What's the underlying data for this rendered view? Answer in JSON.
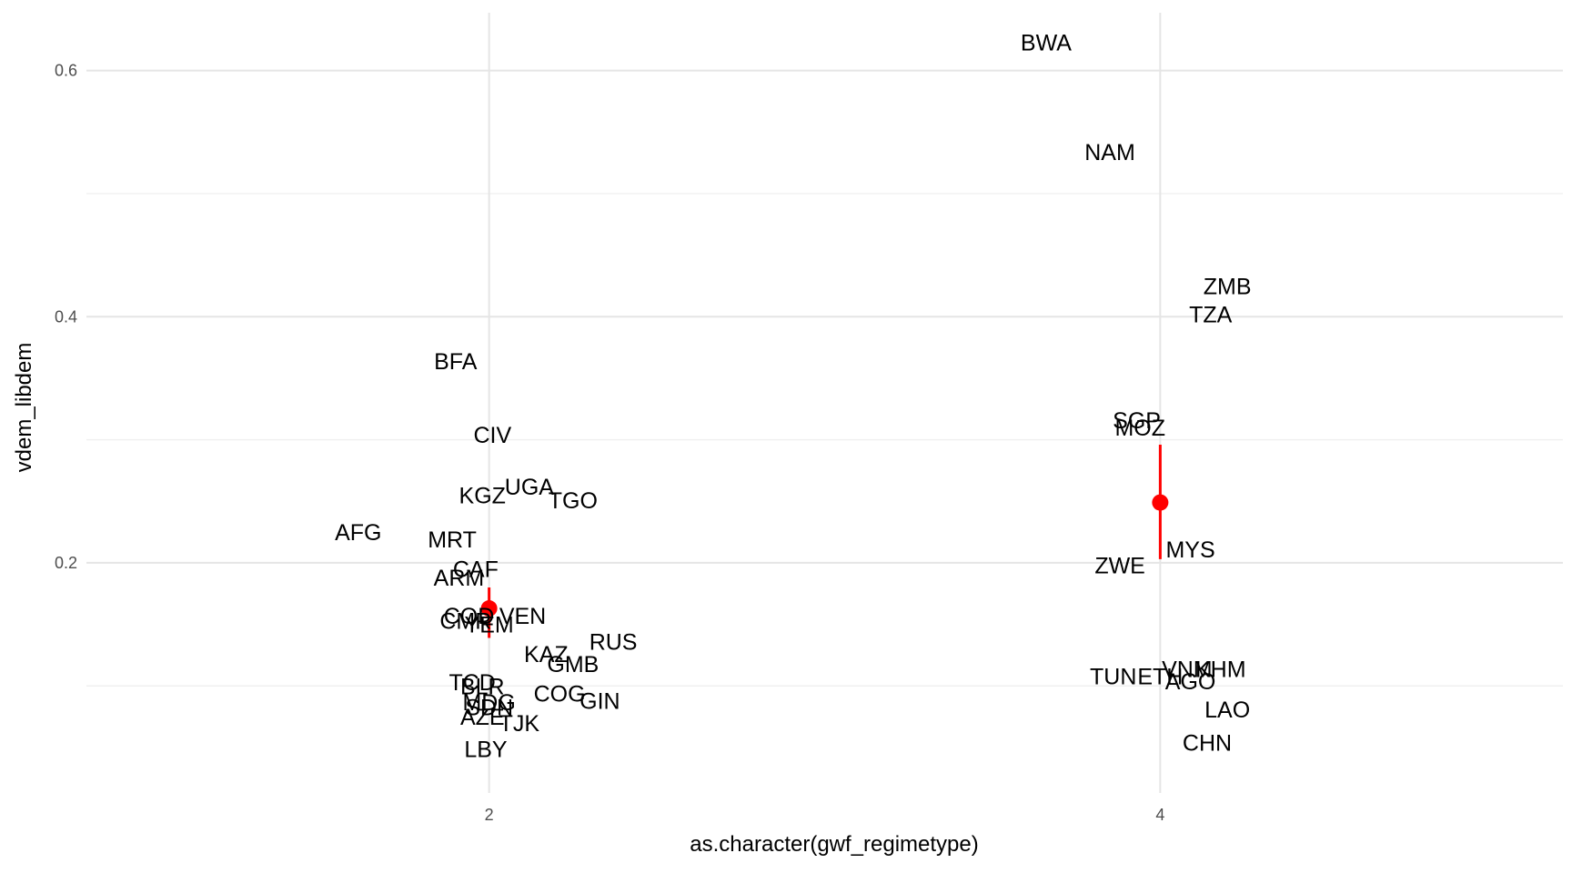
{
  "chart_data": {
    "type": "scatter",
    "title": "",
    "xlabel": "as.character(gwf_regimetype)",
    "ylabel": "vdem_libdem",
    "xlim": [
      0.8,
      5.2
    ],
    "ylim": [
      0.013,
      0.647
    ],
    "x_ticks": [
      2,
      4
    ],
    "x_tick_labels": [
      "2",
      "4"
    ],
    "y_ticks": [
      0.2,
      0.4,
      0.6
    ],
    "y_tick_labels": [
      "0.2",
      "0.4",
      "0.6"
    ],
    "grid": true,
    "colors": {
      "label_text": "#000000",
      "summary": "#ff0000",
      "grid_major": "#e5e5e5",
      "grid_minor": "#f0f0f0"
    },
    "labels": [
      {
        "text": "BWA",
        "x": 3.66,
        "y": 0.623
      },
      {
        "text": "NAM",
        "x": 3.85,
        "y": 0.534
      },
      {
        "text": "ZMB",
        "x": 4.2,
        "y": 0.425
      },
      {
        "text": "TZA",
        "x": 4.15,
        "y": 0.402
      },
      {
        "text": "BFA",
        "x": 1.9,
        "y": 0.364
      },
      {
        "text": "SGP",
        "x": 3.93,
        "y": 0.316
      },
      {
        "text": "MOZ",
        "x": 3.94,
        "y": 0.31
      },
      {
        "text": "CIV",
        "x": 2.01,
        "y": 0.304
      },
      {
        "text": "UGA",
        "x": 2.12,
        "y": 0.262
      },
      {
        "text": "KGZ",
        "x": 1.98,
        "y": 0.255
      },
      {
        "text": "TGO",
        "x": 2.25,
        "y": 0.251
      },
      {
        "text": "AFG",
        "x": 1.61,
        "y": 0.225
      },
      {
        "text": "MRT",
        "x": 1.89,
        "y": 0.219
      },
      {
        "text": "MYS",
        "x": 4.09,
        "y": 0.211
      },
      {
        "text": "ZWE",
        "x": 3.88,
        "y": 0.198
      },
      {
        "text": "CAF",
        "x": 1.96,
        "y": 0.195
      },
      {
        "text": "ARM",
        "x": 1.91,
        "y": 0.188
      },
      {
        "text": "COD",
        "x": 1.94,
        "y": 0.157
      },
      {
        "text": "VEN",
        "x": 2.1,
        "y": 0.157
      },
      {
        "text": "CMR",
        "x": 1.93,
        "y": 0.153
      },
      {
        "text": "YEM",
        "x": 2.0,
        "y": 0.15
      },
      {
        "text": "RUS",
        "x": 2.37,
        "y": 0.136
      },
      {
        "text": "KAZ",
        "x": 2.17,
        "y": 0.126
      },
      {
        "text": "GMB",
        "x": 2.25,
        "y": 0.118
      },
      {
        "text": "KHM",
        "x": 4.18,
        "y": 0.114
      },
      {
        "text": "VNM",
        "x": 4.08,
        "y": 0.114
      },
      {
        "text": "TUN",
        "x": 3.86,
        "y": 0.108
      },
      {
        "text": "ETH",
        "x": 4.0,
        "y": 0.108
      },
      {
        "text": "AGO",
        "x": 4.09,
        "y": 0.104
      },
      {
        "text": "TCD",
        "x": 1.95,
        "y": 0.103
      },
      {
        "text": "BLR",
        "x": 1.98,
        "y": 0.1
      },
      {
        "text": "COG",
        "x": 2.21,
        "y": 0.094
      },
      {
        "text": "GIN",
        "x": 2.33,
        "y": 0.088
      },
      {
        "text": "MDG",
        "x": 2.0,
        "y": 0.087
      },
      {
        "text": "SDN",
        "x": 2.0,
        "y": 0.083
      },
      {
        "text": "LAO",
        "x": 4.2,
        "y": 0.081
      },
      {
        "text": "AZE",
        "x": 1.98,
        "y": 0.075
      },
      {
        "text": "TJK",
        "x": 2.09,
        "y": 0.07
      },
      {
        "text": "CHN",
        "x": 4.14,
        "y": 0.054
      },
      {
        "text": "LBY",
        "x": 1.99,
        "y": 0.049
      }
    ],
    "summary": [
      {
        "x": 2,
        "mean": 0.163,
        "low": 0.139,
        "high": 0.18
      },
      {
        "x": 4,
        "mean": 0.249,
        "low": 0.203,
        "high": 0.296
      }
    ]
  }
}
